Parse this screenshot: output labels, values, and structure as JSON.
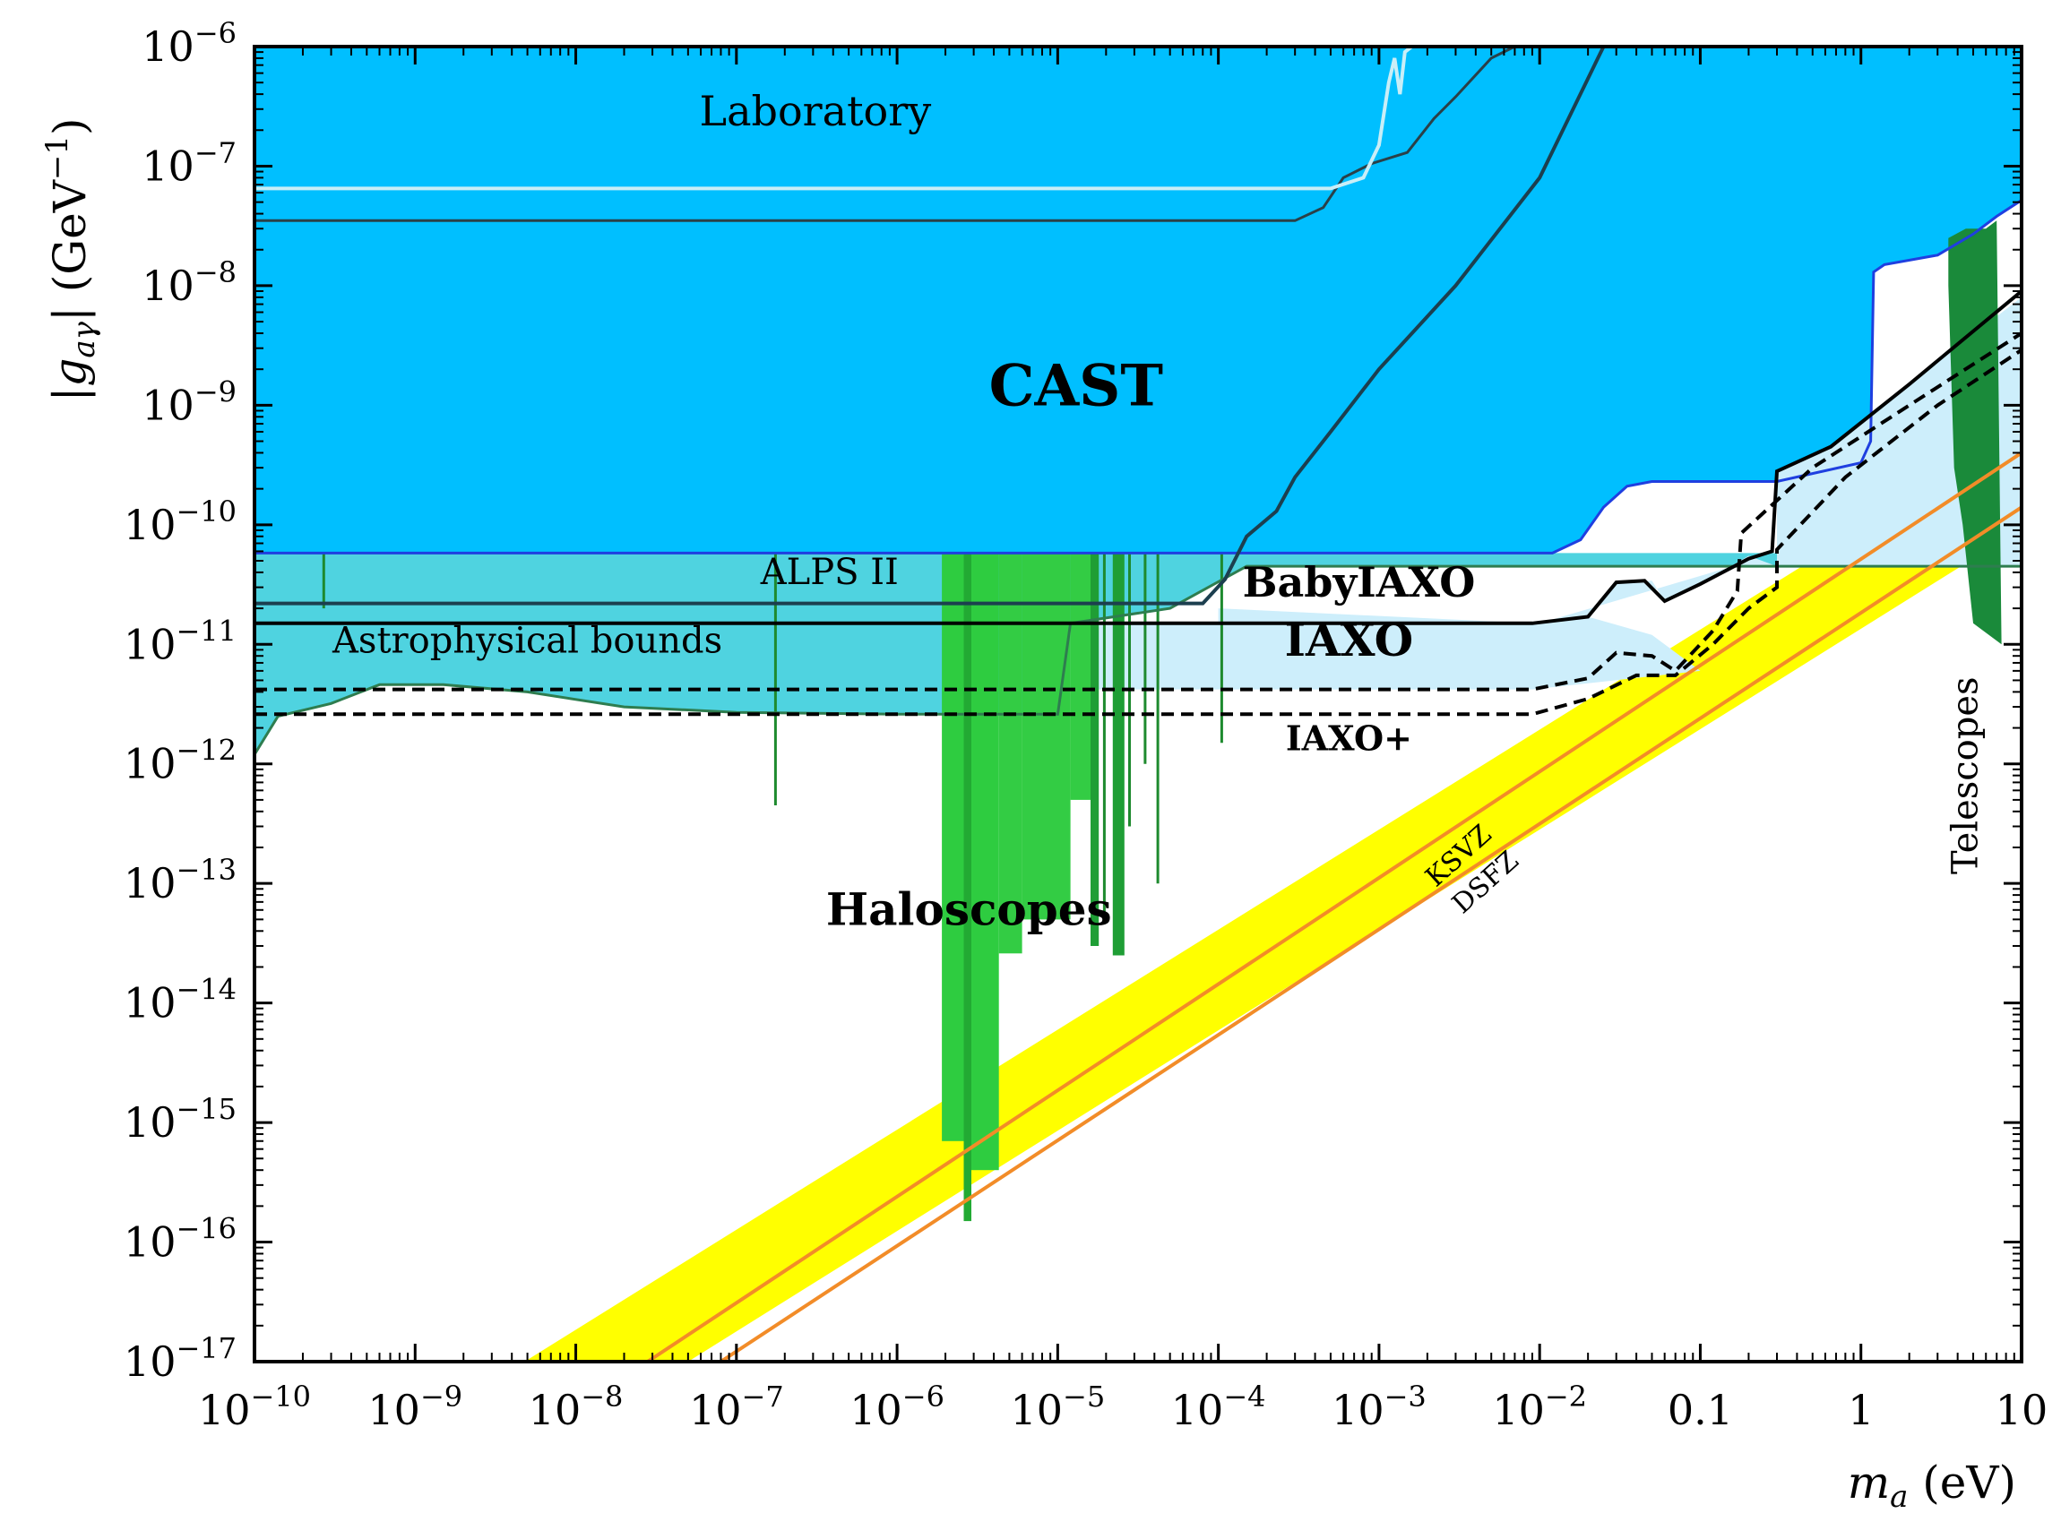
{
  "chart_data": {
    "type": "area",
    "xlabel": "m_a (eV)",
    "ylabel": "|g_aγ| (GeV^-1)",
    "x_scale": "log",
    "y_scale": "log",
    "xlim": [
      1e-10,
      10
    ],
    "ylim": [
      1e-17,
      1e-06
    ],
    "x_ticks": [
      {
        "value": 1e-10,
        "base": "10",
        "exp": "−10"
      },
      {
        "value": 1e-09,
        "base": "10",
        "exp": "−9"
      },
      {
        "value": 1e-08,
        "base": "10",
        "exp": "−8"
      },
      {
        "value": 1e-07,
        "base": "10",
        "exp": "−7"
      },
      {
        "value": 1e-06,
        "base": "10",
        "exp": "−6"
      },
      {
        "value": 1e-05,
        "base": "10",
        "exp": "−5"
      },
      {
        "value": 0.0001,
        "base": "10",
        "exp": "−4"
      },
      {
        "value": 0.001,
        "base": "10",
        "exp": "−3"
      },
      {
        "value": 0.01,
        "base": "10",
        "exp": "−2"
      },
      {
        "value": 0.1,
        "base": "0.1",
        "exp": ""
      },
      {
        "value": 1,
        "base": "1",
        "exp": ""
      },
      {
        "value": 10,
        "base": "10",
        "exp": ""
      }
    ],
    "y_ticks": [
      {
        "value": 1e-06,
        "base": "10",
        "exp": "−6"
      },
      {
        "value": 1e-07,
        "base": "10",
        "exp": "−7"
      },
      {
        "value": 1e-08,
        "base": "10",
        "exp": "−8"
      },
      {
        "value": 1e-09,
        "base": "10",
        "exp": "−9"
      },
      {
        "value": 1e-10,
        "base": "10",
        "exp": "−10"
      },
      {
        "value": 1e-11,
        "base": "10",
        "exp": "−11"
      },
      {
        "value": 1e-12,
        "base": "10",
        "exp": "−12"
      },
      {
        "value": 1e-13,
        "base": "10",
        "exp": "−13"
      },
      {
        "value": 1e-14,
        "base": "10",
        "exp": "−14"
      },
      {
        "value": 1e-15,
        "base": "10",
        "exp": "−15"
      },
      {
        "value": 1e-16,
        "base": "10",
        "exp": "−16"
      },
      {
        "value": 1e-17,
        "base": "10",
        "exp": "−17"
      }
    ],
    "regions": [
      {
        "name": "Laboratory",
        "color": "#5b8fa0",
        "points": [
          [
            1e-10,
            3.5e-08
          ],
          [
            0.0003,
            3.5e-08
          ],
          [
            0.00045,
            4.5e-08
          ],
          [
            0.0006,
            8e-08
          ],
          [
            0.0009,
            1.05e-07
          ],
          [
            0.0015,
            1.3e-07
          ],
          [
            0.0022,
            2.5e-07
          ],
          [
            0.003,
            3.8e-07
          ],
          [
            0.005,
            8e-07
          ],
          [
            0.007,
            1e-06
          ],
          [
            1e-10,
            1e-06
          ]
        ]
      },
      {
        "name": "CAST",
        "color": "#00bfff",
        "points": [
          [
            1e-10,
            5.8e-11
          ],
          [
            0.012,
            5.8e-11
          ],
          [
            0.018,
            7.5e-11
          ],
          [
            0.025,
            1.4e-10
          ],
          [
            0.035,
            2.1e-10
          ],
          [
            0.05,
            2.3e-10
          ],
          [
            0.1,
            2.3e-10
          ],
          [
            0.3,
            2.3e-10
          ],
          [
            1.0,
            3.3e-10
          ],
          [
            1.15,
            5e-10
          ],
          [
            1.2,
            1.3e-08
          ],
          [
            1.4,
            1.5e-08
          ],
          [
            3,
            1.8e-08
          ],
          [
            5,
            2.7e-08
          ],
          [
            7,
            3.8e-08
          ],
          [
            10,
            5.2e-08
          ],
          [
            10,
            1e-06
          ],
          [
            1e-10,
            1e-06
          ]
        ]
      },
      {
        "name": "Astrophysical bounds",
        "color": "#4fd3e0",
        "points": [
          [
            1e-10,
            1.2e-12
          ],
          [
            1.4e-10,
            2.5e-12
          ],
          [
            3e-10,
            3.2e-12
          ],
          [
            6e-10,
            4.6e-12
          ],
          [
            1.5e-09,
            4.6e-12
          ],
          [
            5e-09,
            4e-12
          ],
          [
            2e-08,
            3e-12
          ],
          [
            1e-07,
            2.7e-12
          ],
          [
            1e-06,
            2.6e-12
          ],
          [
            1e-05,
            2.6e-12
          ],
          [
            1.2e-05,
            1.5e-11
          ],
          [
            5e-05,
            2e-11
          ],
          [
            0.00015,
            4.5e-11
          ],
          [
            10,
            4.5e-11
          ],
          [
            10,
            5.8e-11
          ],
          [
            1e-10,
            5.8e-11
          ]
        ]
      },
      {
        "name": "BabyIAXO",
        "color": "#cdeefb",
        "points": [
          [
            0.0001,
            2e-11
          ],
          [
            0.009,
            1.5e-11
          ],
          [
            0.02,
            1.7e-11
          ],
          [
            0.03,
            3.3e-11
          ],
          [
            0.05,
            3.4e-11
          ],
          [
            0.06,
            2.3e-11
          ],
          [
            0.1,
            3.2e-11
          ],
          [
            0.2,
            5.5e-11
          ],
          [
            0.3,
            4.5e-11
          ],
          [
            0.3,
            2.8e-10
          ],
          [
            0.65,
            4.5e-10
          ],
          [
            2,
            1.5e-09
          ],
          [
            10,
            8e-09
          ],
          [
            10,
            4.5e-11
          ],
          [
            0.16,
            4.5e-11
          ],
          [
            0.01,
            1.5e-11
          ],
          [
            0.0001,
            1.5e-11
          ]
        ]
      },
      {
        "name": "IAXO",
        "color": "#cdeefb",
        "points": [
          [
            1.2e-05,
            1.5e-11
          ],
          [
            0.009,
            1.5e-11
          ],
          [
            0.02,
            1.7e-11
          ],
          [
            0.05,
            1.2e-11
          ],
          [
            0.1,
            6e-12
          ],
          [
            0.009,
            4.2e-12
          ],
          [
            0.0001,
            4.2e-12
          ],
          [
            1.2e-05,
            4.2e-12
          ]
        ]
      },
      {
        "name": "Telescopes",
        "color": "#1a8a3a",
        "points": [
          [
            3.5,
            2.5e-08
          ],
          [
            4.5,
            3e-08
          ],
          [
            6,
            3e-08
          ],
          [
            7,
            3.5e-08
          ],
          [
            7.5,
            1e-11
          ],
          [
            5,
            1.5e-11
          ],
          [
            4.3,
            1e-10
          ],
          [
            3.8,
            3e-10
          ],
          [
            3.5,
            1e-08
          ]
        ]
      }
    ],
    "haloscope_bands": [
      {
        "x0": 1.9e-06,
        "x1": 2.6e-06,
        "ylow": 7e-16,
        "color": "#2ecc40"
      },
      {
        "x0": 2.6e-06,
        "x1": 2.9e-06,
        "ylow": 1.5e-16,
        "color": "#22aa33"
      },
      {
        "x0": 2.9e-06,
        "x1": 4.3e-06,
        "ylow": 4e-16,
        "color": "#2ecc40"
      },
      {
        "x0": 4.3e-06,
        "x1": 6e-06,
        "ylow": 2.6e-14,
        "color": "#33cc44"
      },
      {
        "x0": 6e-06,
        "x1": 1.2e-05,
        "ylow": 5e-14,
        "color": "#33cc44"
      },
      {
        "x0": 1.2e-05,
        "x1": 1.6e-05,
        "ylow": 5e-13,
        "color": "#33cc44"
      },
      {
        "x0": 1.6e-05,
        "x1": 1.8e-05,
        "ylow": 3e-14,
        "color": "#1f9e35"
      },
      {
        "x0": 2.2e-05,
        "x1": 2.6e-05,
        "ylow": 2.5e-14,
        "color": "#1f9e35"
      }
    ],
    "haloscope_spikes": [
      {
        "x": 1.75e-07,
        "ylow": 4.5e-13
      },
      {
        "x": 2.7e-10,
        "ylow": 2e-11
      },
      {
        "x": 1.95e-05,
        "ylow": 5e-14
      },
      {
        "x": 2.8e-05,
        "ylow": 3e-13
      },
      {
        "x": 3.5e-05,
        "ylow": 1e-12
      },
      {
        "x": 4.2e-05,
        "ylow": 1e-13
      },
      {
        "x": 0.000105,
        "ylow": 1.5e-12
      }
    ],
    "qcd_band": {
      "name": "QCD axion band",
      "color": "#ffff00",
      "upper": [
        [
          4.8e-09,
          1e-17
        ],
        [
          0.43,
          4.5e-11
        ]
      ],
      "lower": [
        [
          5e-08,
          1e-17
        ],
        [
          4.2,
          4.5e-11
        ]
      ]
    },
    "series": [
      {
        "name": "KSVZ",
        "color": "#f28c28",
        "style": "solid",
        "points": [
          [
            2.8e-08,
            1e-17
          ],
          [
            10,
            4e-10
          ]
        ]
      },
      {
        "name": "DSFZ",
        "color": "#f28c28",
        "style": "solid",
        "points": [
          [
            8e-08,
            1e-17
          ],
          [
            10,
            1.4e-10
          ]
        ]
      },
      {
        "name": "ALPS II",
        "color": "#1c3f4f",
        "style": "solid",
        "points": [
          [
            1e-10,
            2.2e-11
          ],
          [
            8e-05,
            2.2e-11
          ],
          [
            0.00011,
            3.5e-11
          ],
          [
            0.00015,
            8e-11
          ],
          [
            0.00023,
            1.3e-10
          ],
          [
            0.0003,
            2.5e-10
          ],
          [
            0.0005,
            6e-10
          ],
          [
            0.001,
            2e-09
          ],
          [
            0.003,
            1e-08
          ],
          [
            0.01,
            8e-08
          ],
          [
            0.025,
            1e-06
          ]
        ]
      },
      {
        "name": "Laboratory inner",
        "color": "#c9eef7",
        "style": "solid",
        "points": [
          [
            1e-10,
            6.5e-08
          ],
          [
            0.0005,
            6.5e-08
          ],
          [
            0.0008,
            8e-08
          ],
          [
            0.001,
            1.5e-07
          ],
          [
            0.00115,
            5e-07
          ],
          [
            0.00125,
            8e-07
          ],
          [
            0.00135,
            4e-07
          ],
          [
            0.00145,
            9e-07
          ],
          [
            0.0016,
            1e-06
          ]
        ]
      },
      {
        "name": "BabyIAXO",
        "color": "#000000",
        "style": "solid",
        "points": [
          [
            1e-10,
            1.5e-11
          ],
          [
            0.009,
            1.5e-11
          ],
          [
            0.02,
            1.7e-11
          ],
          [
            0.03,
            3.3e-11
          ],
          [
            0.045,
            3.4e-11
          ],
          [
            0.06,
            2.3e-11
          ],
          [
            0.1,
            3.2e-11
          ],
          [
            0.2,
            5.2e-11
          ],
          [
            0.28,
            6e-11
          ],
          [
            0.3,
            2.8e-10
          ],
          [
            0.65,
            4.5e-10
          ],
          [
            2,
            1.5e-09
          ],
          [
            10,
            9e-09
          ]
        ]
      },
      {
        "name": "IAXO",
        "color": "#000000",
        "style": "dashed",
        "points": [
          [
            1e-10,
            4.2e-12
          ],
          [
            0.009,
            4.2e-12
          ],
          [
            0.02,
            5.2e-12
          ],
          [
            0.03,
            8.5e-12
          ],
          [
            0.05,
            8e-12
          ],
          [
            0.07,
            6e-12
          ],
          [
            0.12,
            1.3e-11
          ],
          [
            0.17,
            2.8e-11
          ],
          [
            0.18,
            8.5e-11
          ],
          [
            0.5,
            3e-10
          ],
          [
            2,
            1e-09
          ],
          [
            10,
            4e-09
          ]
        ]
      },
      {
        "name": "IAXO+",
        "color": "#000000",
        "style": "dashed",
        "points": [
          [
            1e-10,
            2.6e-12
          ],
          [
            0.009,
            2.6e-12
          ],
          [
            0.02,
            3.5e-12
          ],
          [
            0.04,
            5.5e-12
          ],
          [
            0.07,
            5.5e-12
          ],
          [
            0.12,
            1e-11
          ],
          [
            0.2,
            2e-11
          ],
          [
            0.3,
            3e-11
          ],
          [
            0.3,
            6.2e-11
          ],
          [
            0.8,
            2.5e-10
          ],
          [
            3,
            1e-09
          ],
          [
            10,
            2.9e-09
          ]
        ]
      }
    ],
    "annotations": [
      {
        "text": "Laboratory",
        "x": 3.1e-07,
        "y": 2.2e-07,
        "size": 46,
        "weight": "normal",
        "color": "#f5f7f8",
        "rotate": 0
      },
      {
        "text": "CAST",
        "x": 1.3e-05,
        "y": 1e-09,
        "size": 64,
        "weight": "bold",
        "color": "#1a3cf0",
        "rotate": 0
      },
      {
        "text": "ALPS II",
        "x": 3.8e-07,
        "y": 3.2e-11,
        "size": 40,
        "weight": "normal",
        "color": "#000000",
        "rotate": 0
      },
      {
        "text": "Astrophysical bounds",
        "x": 5e-09,
        "y": 8.5e-12,
        "size": 40,
        "weight": "normal",
        "color": "#000000",
        "rotate": 0
      },
      {
        "text": "BabyIAXO",
        "x": 0.00075,
        "y": 2.5e-11,
        "size": 46,
        "weight": "bold",
        "color": "#000000",
        "rotate": 0
      },
      {
        "text": "IAXO",
        "x": 0.00065,
        "y": 8e-12,
        "size": 50,
        "weight": "bold",
        "color": "#000000",
        "rotate": 0
      },
      {
        "text": "IAXO+",
        "x": 0.00065,
        "y": 1.3e-12,
        "size": 38,
        "weight": "bold",
        "color": "#000000",
        "rotate": 0
      },
      {
        "text": "Haloscopes",
        "x": 2.8e-06,
        "y": 4.5e-14,
        "size": 50,
        "weight": "bold",
        "color": "#000000",
        "rotate": 0
      },
      {
        "text": "KSVZ",
        "x": 0.0034,
        "y": 1.5e-13,
        "size": 30,
        "weight": "normal",
        "color": "#138a1e",
        "rotate": -42
      },
      {
        "text": "DSFZ",
        "x": 0.005,
        "y": 9e-14,
        "size": 30,
        "weight": "normal",
        "color": "#138a1e",
        "rotate": -42
      },
      {
        "text": "Telescopes",
        "x": 5.3,
        "y": 8e-13,
        "size": 40,
        "weight": "normal",
        "color": "#000000",
        "rotate": -90
      }
    ]
  }
}
